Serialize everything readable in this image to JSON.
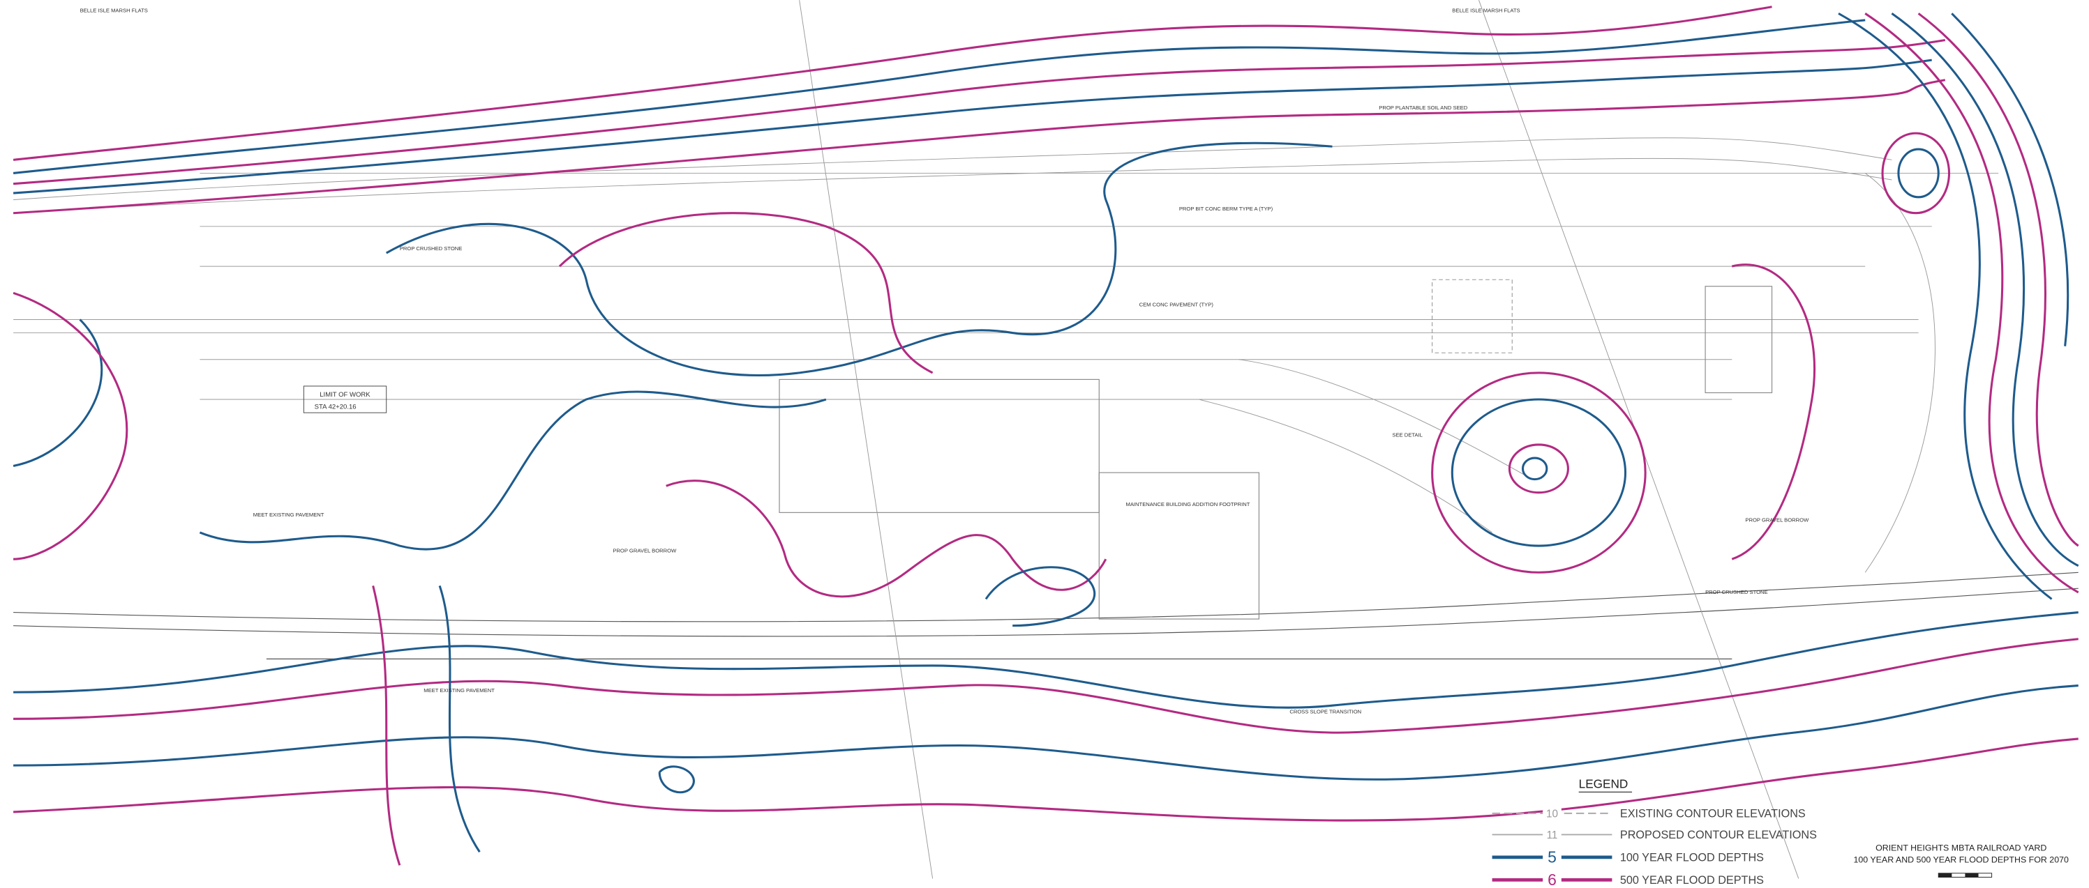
{
  "header": {
    "title": "ORIENT HEIGHTS MBTA RAILROAD YARD",
    "subtitle": "100 YEAR AND 500 YEAR FLOOD DEPTHS FOR 2070"
  },
  "legend": {
    "title": "LEGEND",
    "items": [
      {
        "symbol": "10",
        "label": "EXISTING CONTOUR ELEVATIONS"
      },
      {
        "symbol": "11",
        "label": "PROPOSED CONTOUR ELEVATIONS"
      },
      {
        "symbol": "5",
        "label": "100 YEAR FLOOD DEPTHS"
      },
      {
        "symbol": "6",
        "label": "500 YEAR FLOOD DEPTHS"
      }
    ]
  },
  "labels": [
    "BELLE ISLE MARSH FLATS",
    "BELLE ISLE MARSH FLATS",
    "LIMIT OF WORK",
    "STA 42+20.16",
    "MAINTENANCE BUILDING ADDITION FOOTPRINT",
    "PROP CRUSHED STONE",
    "MEET EXISTING PAVEMENT",
    "PROP GRAVEL BORROW",
    "CROSS SLOPE TRANSITION",
    "PROP PLANTABLE SOIL AND SEED",
    "CEM CONC PAVEMENT (TYP)",
    "PROP BIT CONC BERM TYPE A (TYP)",
    "SEE DETAIL",
    "PROP CRUSHED STONE",
    "PROP GRAVEL BORROW",
    "MEET EXISTING PAVEMENT"
  ]
}
